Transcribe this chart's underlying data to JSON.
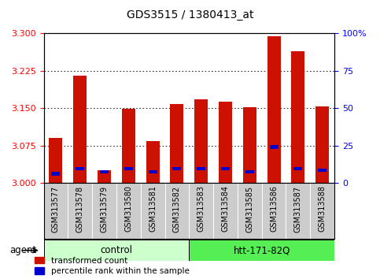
{
  "title": "GDS3515 / 1380413_at",
  "samples": [
    "GSM313577",
    "GSM313578",
    "GSM313579",
    "GSM313580",
    "GSM313581",
    "GSM313582",
    "GSM313583",
    "GSM313584",
    "GSM313585",
    "GSM313586",
    "GSM313587",
    "GSM313588"
  ],
  "red_values": [
    3.09,
    3.215,
    3.025,
    3.148,
    3.083,
    3.158,
    3.168,
    3.163,
    3.152,
    3.295,
    3.265,
    3.153
  ],
  "blue_values": [
    3.018,
    3.028,
    3.022,
    3.028,
    3.022,
    3.028,
    3.028,
    3.028,
    3.022,
    3.072,
    3.028,
    3.025
  ],
  "ymin": 3.0,
  "ymax": 3.3,
  "yticks_left": [
    3.0,
    3.075,
    3.15,
    3.225,
    3.3
  ],
  "yticks_right": [
    0,
    25,
    50,
    75,
    100
  ],
  "ytick_labels_right": [
    "0",
    "25",
    "50",
    "75",
    "100%"
  ],
  "bar_color": "#cc1100",
  "blue_color": "#0000cc",
  "bar_width": 0.55,
  "control_color_light": "#ccffcc",
  "control_color_dark": "#55ee55",
  "tick_bg_color": "#cccccc",
  "grid_linestyle": "dotted",
  "legend_red": "transformed count",
  "legend_blue": "percentile rank within the sample"
}
